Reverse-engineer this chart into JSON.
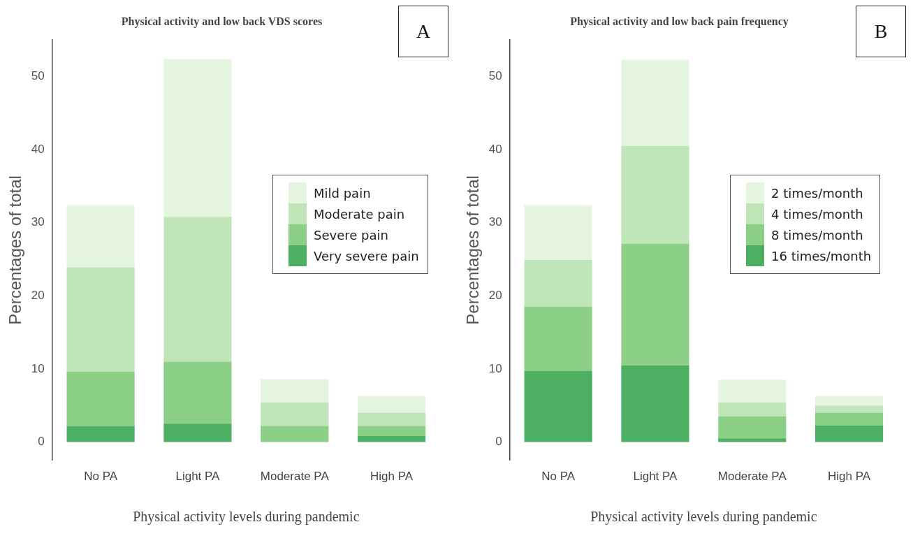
{
  "chart_data": [
    {
      "type": "bar",
      "title": "Physical activity and low back VDS scores",
      "xlabel": "Physical activity levels during pandemic",
      "ylabel": "Percentages of total",
      "categories": [
        "No PA",
        "Light PA",
        "Moderate PA",
        "High PA"
      ],
      "stacked": true,
      "ylim": [
        -2.5,
        55
      ],
      "yticks": [
        0,
        10,
        20,
        30,
        40,
        50
      ],
      "legend": "right",
      "annotations": [
        "A"
      ],
      "series": [
        {
          "name": "Very severe pain",
          "color": "#4caf62",
          "values": [
            2.2,
            2.5,
            0,
            0.8
          ]
        },
        {
          "name": "Severe pain",
          "color": "#8ccf87",
          "values": [
            7.4,
            8.5,
            2.2,
            1.4
          ]
        },
        {
          "name": "Moderate pain",
          "color": "#c0e5b9",
          "values": [
            14.3,
            19.8,
            3.2,
            1.8
          ]
        },
        {
          "name": "Mild pain",
          "color": "#e5f5e0",
          "values": [
            8.5,
            21.6,
            3.2,
            2.3
          ]
        }
      ]
    },
    {
      "type": "bar",
      "title": "Physical activity and low back pain frequency",
      "xlabel": "Physical activity levels during pandemic",
      "ylabel": "Percentages of total",
      "categories": [
        "No PA",
        "Light PA",
        "Moderate PA",
        "High PA"
      ],
      "stacked": true,
      "ylim": [
        -2.5,
        55
      ],
      "yticks": [
        0,
        10,
        20,
        30,
        40,
        50
      ],
      "legend": "right",
      "annotations": [
        "B"
      ],
      "series": [
        {
          "name": "16 times/month",
          "color": "#4caf62",
          "values": [
            9.7,
            10.5,
            0.5,
            2.3
          ]
        },
        {
          "name": "8 times/month",
          "color": "#8ccf87",
          "values": [
            8.8,
            16.6,
            3.0,
            1.7
          ]
        },
        {
          "name": "4 times/month",
          "color": "#c0e5b9",
          "values": [
            6.4,
            13.4,
            1.9,
            1.0
          ]
        },
        {
          "name": "2 times/month",
          "color": "#e5f5e0",
          "values": [
            7.5,
            11.8,
            3.1,
            1.3
          ]
        }
      ]
    }
  ]
}
